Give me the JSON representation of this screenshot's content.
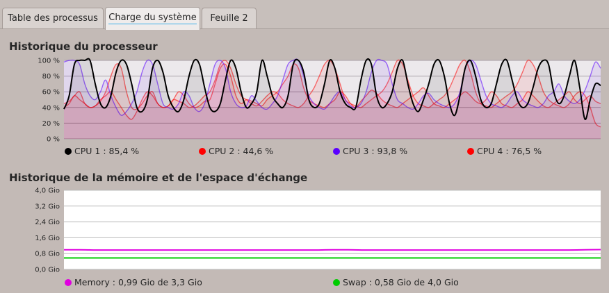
{
  "tabs": [
    {
      "label": "Table des processus",
      "active": false
    },
    {
      "label": "Charge du système",
      "active": true
    },
    {
      "label": "Feuille 2",
      "active": false
    }
  ],
  "colors": {
    "accent": "#3daee9",
    "cpu1": "#000000",
    "cpu2": "#ff0000",
    "cpu3": "#5a00ff",
    "cpu4": "#ff0000",
    "memory": "#e000e0",
    "swap": "#00cc00"
  },
  "cpu_chart": {
    "title": "Historique du processeur",
    "legend": [
      {
        "label": "CPU 1 : 85,4 %",
        "color": "#000000"
      },
      {
        "label": "CPU 2 : 44,6 %",
        "color": "#ff0000"
      },
      {
        "label": "CPU 3 : 93,8 %",
        "color": "#5a00ff"
      },
      {
        "label": "CPU 4 : 76,5 %",
        "color": "#ff0000"
      }
    ]
  },
  "memory_chart": {
    "title": "Historique de la mémoire et de l'espace d'échange",
    "legend": [
      {
        "label": "Memory : 0,99 Gio de 3,3 Gio",
        "color": "#e000e0"
      },
      {
        "label": "Swap : 0,58 Gio de 4,0 Gio",
        "color": "#00cc00"
      }
    ]
  },
  "chart_data": [
    {
      "type": "area",
      "title": "Historique du processeur",
      "ylim": [
        0,
        100
      ],
      "ytick_labels": [
        "100 %",
        "80 %",
        "60 %",
        "40 %",
        "20 %",
        "0 %"
      ],
      "ytick_values": [
        100,
        80,
        60,
        40,
        20,
        0
      ],
      "grid": true,
      "series": [
        {
          "name": "CPU 1",
          "color": "#000000",
          "values": [
            38,
            55,
            95,
            100,
            100,
            100,
            70,
            45,
            40,
            55,
            85,
            100,
            95,
            70,
            40,
            35,
            50,
            90,
            100,
            85,
            55,
            40,
            35,
            50,
            80,
            100,
            95,
            65,
            40,
            35,
            45,
            75,
            100,
            90,
            60,
            40,
            45,
            60,
            100,
            80,
            55,
            45,
            40,
            55,
            95,
            100,
            85,
            50,
            40,
            45,
            70,
            100,
            90,
            60,
            45,
            40,
            40,
            75,
            100,
            95,
            55,
            40,
            45,
            60,
            90,
            100,
            70,
            45,
            35,
            50,
            70,
            95,
            100,
            80,
            45,
            30,
            55,
            90,
            100,
            80,
            50,
            40,
            45,
            70,
            95,
            100,
            75,
            50,
            40,
            45,
            65,
            90,
            100,
            95,
            60,
            45,
            55,
            80,
            100,
            65,
            25,
            50,
            70,
            68
          ]
        },
        {
          "name": "CPU 2",
          "color": "#ff0000",
          "values": [
            40,
            45,
            55,
            50,
            45,
            40,
            42,
            48,
            60,
            80,
            95,
            90,
            60,
            40,
            38,
            45,
            55,
            60,
            45,
            40,
            42,
            50,
            60,
            55,
            45,
            40,
            42,
            48,
            50,
            70,
            90,
            95,
            80,
            55,
            45,
            50,
            48,
            45,
            42,
            50,
            55,
            60,
            70,
            80,
            95,
            90,
            65,
            50,
            45,
            42,
            40,
            45,
            50,
            60,
            55,
            45,
            40,
            48,
            55,
            62,
            58,
            50,
            45,
            42,
            40,
            45,
            50,
            55,
            60,
            65,
            55,
            45,
            42,
            40,
            45,
            50,
            55,
            60,
            55,
            48,
            45,
            50,
            60,
            55,
            45,
            42,
            40,
            45,
            50,
            60,
            55,
            48,
            42,
            40,
            45,
            50,
            55,
            60,
            50,
            45,
            50,
            55,
            48,
            45
          ]
        },
        {
          "name": "CPU 3",
          "color": "#5a00ff",
          "values": [
            98,
            100,
            100,
            95,
            70,
            55,
            50,
            60,
            75,
            55,
            40,
            30,
            35,
            45,
            60,
            85,
            100,
            95,
            70,
            45,
            40,
            38,
            45,
            60,
            55,
            40,
            35,
            45,
            70,
            95,
            100,
            90,
            60,
            45,
            40,
            42,
            55,
            48,
            40,
            38,
            45,
            55,
            75,
            95,
            100,
            100,
            80,
            55,
            45,
            40,
            38,
            45,
            55,
            60,
            50,
            42,
            40,
            45,
            60,
            85,
            100,
            100,
            95,
            70,
            50,
            45,
            40,
            38,
            45,
            55,
            58,
            50,
            45,
            42,
            40,
            45,
            60,
            90,
            100,
            95,
            75,
            55,
            45,
            42,
            40,
            45,
            55,
            60,
            50,
            45,
            42,
            40,
            45,
            55,
            60,
            70,
            55,
            48,
            45,
            50,
            62,
            80,
            98,
            90
          ]
        },
        {
          "name": "CPU 4",
          "color": "#ff0000",
          "values": [
            45,
            48,
            55,
            60,
            45,
            40,
            42,
            50,
            55,
            60,
            50,
            40,
            30,
            25,
            35,
            50,
            60,
            55,
            45,
            40,
            42,
            50,
            48,
            45,
            40,
            42,
            48,
            55,
            60,
            75,
            95,
            100,
            90,
            70,
            55,
            50,
            45,
            42,
            48,
            55,
            60,
            58,
            50,
            45,
            42,
            40,
            45,
            55,
            65,
            80,
            95,
            100,
            90,
            70,
            50,
            45,
            42,
            40,
            45,
            50,
            55,
            60,
            70,
            85,
            100,
            95,
            75,
            55,
            45,
            42,
            40,
            45,
            50,
            55,
            65,
            80,
            95,
            100,
            85,
            60,
            45,
            42,
            40,
            45,
            50,
            55,
            60,
            70,
            85,
            100,
            95,
            80,
            60,
            50,
            45,
            42,
            40,
            45,
            55,
            60,
            55,
            40,
            20,
            15
          ]
        }
      ]
    },
    {
      "type": "line",
      "title": "Historique de la mémoire et de l'espace d'échange",
      "ylim": [
        0,
        4.0
      ],
      "ytick_labels": [
        "4,0 Gio",
        "3,2 Gio",
        "2,4 Gio",
        "1,6 Gio",
        "0,8 Gio",
        "0,0 Gio"
      ],
      "ytick_values": [
        4.0,
        3.2,
        2.4,
        1.6,
        0.8,
        0.0
      ],
      "grid": true,
      "series": [
        {
          "name": "Memory",
          "color": "#e000e0",
          "values": [
            0.99,
            0.99,
            0.98,
            0.98,
            0.98,
            0.98,
            0.98,
            0.98,
            0.98,
            0.98,
            0.98,
            0.98,
            0.98,
            0.98,
            0.98,
            0.98,
            0.98,
            0.99,
            0.99,
            0.98,
            0.98,
            0.98,
            0.98,
            0.98,
            0.98,
            0.98,
            0.98,
            0.98,
            0.98,
            0.98,
            0.98,
            0.98,
            0.98,
            0.99,
            1.0
          ]
        },
        {
          "name": "Swap",
          "color": "#00cc00",
          "values": [
            0.58,
            0.58,
            0.58,
            0.58,
            0.58,
            0.58,
            0.58,
            0.58,
            0.58,
            0.58,
            0.58,
            0.58,
            0.58,
            0.58,
            0.58,
            0.58,
            0.58,
            0.58,
            0.58,
            0.58,
            0.58,
            0.58,
            0.58,
            0.58,
            0.58,
            0.58,
            0.58,
            0.58,
            0.58,
            0.58,
            0.58,
            0.58,
            0.58,
            0.58,
            0.58
          ]
        }
      ]
    }
  ]
}
